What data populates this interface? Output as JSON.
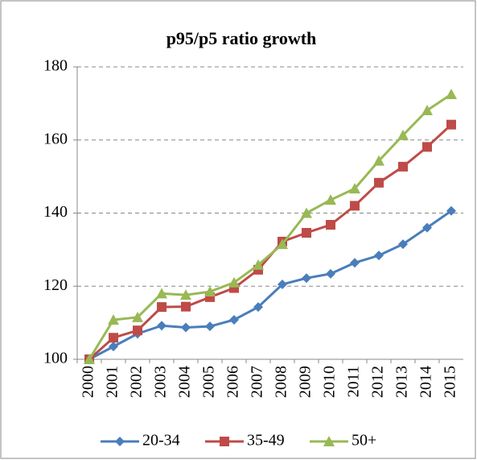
{
  "chart_data": {
    "type": "line",
    "title": "p95/p5 ratio growth",
    "categories": [
      "2000",
      "2001",
      "2002",
      "2003",
      "2004",
      "2005",
      "2006",
      "2007",
      "2008",
      "2009",
      "2010",
      "2011",
      "2012",
      "2013",
      "2014",
      "2015"
    ],
    "series": [
      {
        "name": "20-34",
        "color": "#4a7ebb",
        "marker": "diamond",
        "values": [
          100,
          103.5,
          107,
          109.2,
          108.7,
          109,
          110.8,
          114.3,
          120.5,
          122.2,
          123.4,
          126.4,
          128.4,
          131.5,
          136,
          140.6
        ]
      },
      {
        "name": "35-49",
        "color": "#be4b48",
        "marker": "square",
        "values": [
          100,
          105.9,
          107.9,
          114.3,
          114.4,
          117,
          119.5,
          124.5,
          132.2,
          134.6,
          136.8,
          142,
          148.3,
          152.7,
          158.1,
          164.2
        ]
      },
      {
        "name": "50+",
        "color": "#98b954",
        "marker": "triangle",
        "values": [
          100,
          110.8,
          111.5,
          118,
          117.6,
          118.5,
          121,
          125.8,
          131.5,
          140,
          143.6,
          146.7,
          154.3,
          161.3,
          168.1,
          172.5
        ]
      }
    ],
    "ylim": [
      100,
      180
    ],
    "yticks": [
      100,
      120,
      140,
      160,
      180
    ],
    "grid": true,
    "legend": "bottom"
  }
}
